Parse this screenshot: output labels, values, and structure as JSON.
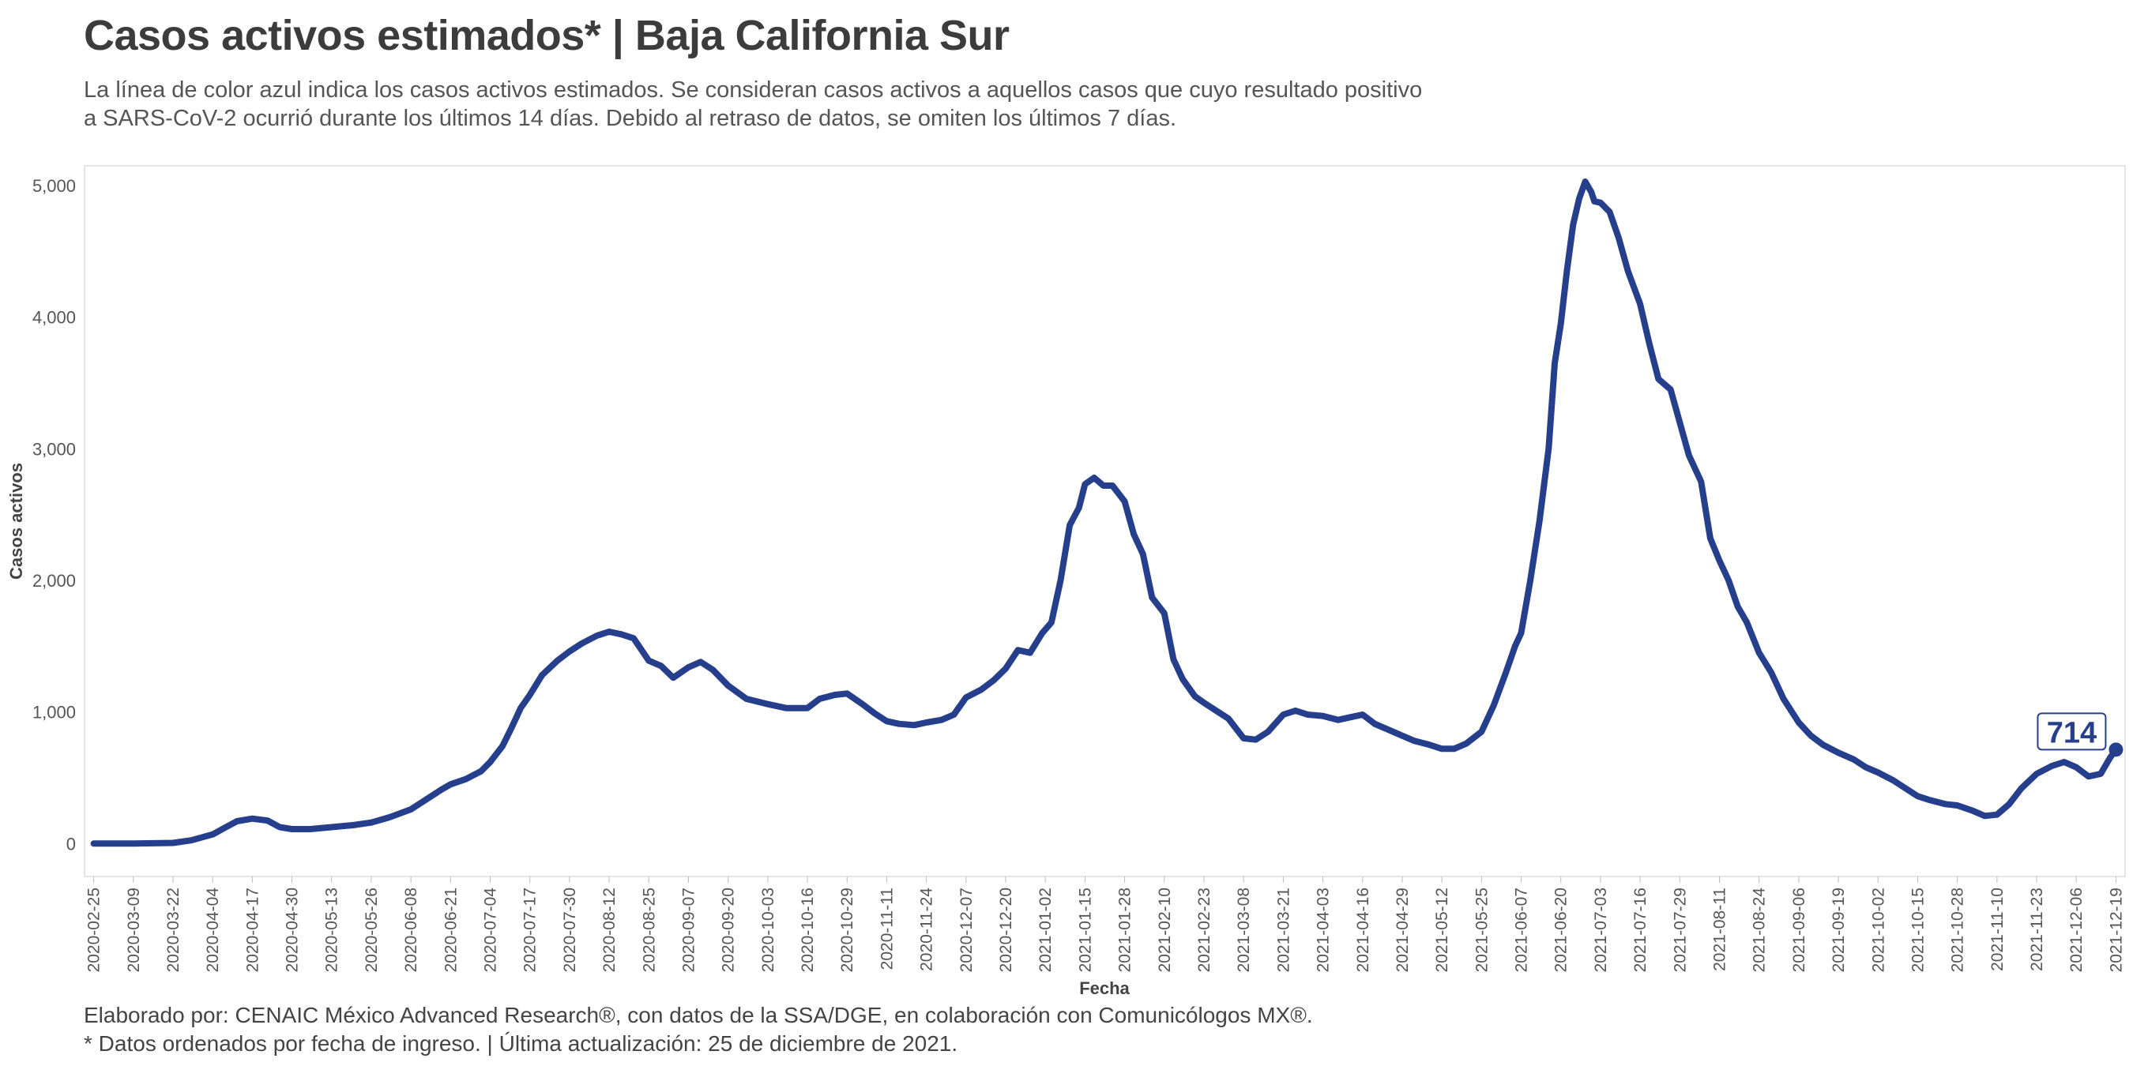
{
  "header": {
    "title": "Casos activos estimados* | Baja California Sur",
    "subtitle_line1": "La línea de color azul indica los casos activos estimados. Se consideran casos activos a aquellos casos que cuyo resultado positivo",
    "subtitle_line2": "a SARS-CoV-2 ocurrió durante los últimos 14 días. Debido al retraso de datos, se omiten los últimos 7 días."
  },
  "footer": {
    "line1": "Elaborado por: CENAIC México Advanced Research®, con datos de la SSA/DGE, en colaboración con Comunicólogos MX®.",
    "line2": "* Datos ordenados por fecha de ingreso. | Última actualización: 25 de diciembre de 2021."
  },
  "colors": {
    "line": "#263f8c",
    "axis_text": "#555555",
    "frame": "#e6e6e6"
  },
  "chart_data": {
    "type": "line",
    "xlabel": "Fecha",
    "ylabel": "Casos activos",
    "ylim": [
      -250,
      5150
    ],
    "xlim": [
      "2020-02-22",
      "2021-12-22"
    ],
    "yticks": [
      0,
      1000,
      2000,
      3000,
      4000,
      5000
    ],
    "ytick_labels": [
      "0",
      "1,000",
      "2,000",
      "3,000",
      "4,000",
      "5,000"
    ],
    "xtick_labels": [
      "2020-02-25",
      "2020-03-09",
      "2020-03-22",
      "2020-04-04",
      "2020-04-17",
      "2020-04-30",
      "2020-05-13",
      "2020-05-26",
      "2020-06-08",
      "2020-06-21",
      "2020-07-04",
      "2020-07-17",
      "2020-07-30",
      "2020-08-12",
      "2020-08-25",
      "2020-09-07",
      "2020-09-20",
      "2020-10-03",
      "2020-10-16",
      "2020-10-29",
      "2020-11-11",
      "2020-11-24",
      "2020-12-07",
      "2020-12-20",
      "2021-01-02",
      "2021-01-15",
      "2021-01-28",
      "2021-02-10",
      "2021-02-23",
      "2021-03-08",
      "2021-03-21",
      "2021-04-03",
      "2021-04-16",
      "2021-04-29",
      "2021-05-12",
      "2021-05-25",
      "2021-06-07",
      "2021-06-20",
      "2021-07-03",
      "2021-07-16",
      "2021-07-29",
      "2021-08-11",
      "2021-08-24",
      "2021-09-06",
      "2021-09-19",
      "2021-10-02",
      "2021-10-15",
      "2021-10-28",
      "2021-11-10",
      "2021-11-23",
      "2021-12-06",
      "2021-12-19"
    ],
    "grid": false,
    "series": [
      {
        "x": [
          "2020-02-25",
          "2020-03-09",
          "2020-03-22",
          "2020-03-28",
          "2020-04-04",
          "2020-04-08",
          "2020-04-12",
          "2020-04-17",
          "2020-04-22",
          "2020-04-26",
          "2020-04-30",
          "2020-05-06",
          "2020-05-13",
          "2020-05-20",
          "2020-05-26",
          "2020-06-01",
          "2020-06-08",
          "2020-06-14",
          "2020-06-18",
          "2020-06-21",
          "2020-06-26",
          "2020-07-01",
          "2020-07-04",
          "2020-07-08",
          "2020-07-11",
          "2020-07-14",
          "2020-07-17",
          "2020-07-21",
          "2020-07-26",
          "2020-07-30",
          "2020-08-03",
          "2020-08-08",
          "2020-08-12",
          "2020-08-16",
          "2020-08-20",
          "2020-08-25",
          "2020-08-29",
          "2020-09-02",
          "2020-09-07",
          "2020-09-11",
          "2020-09-15",
          "2020-09-20",
          "2020-09-26",
          "2020-10-03",
          "2020-10-09",
          "2020-10-16",
          "2020-10-20",
          "2020-10-25",
          "2020-10-29",
          "2020-11-03",
          "2020-11-07",
          "2020-11-11",
          "2020-11-15",
          "2020-11-20",
          "2020-11-24",
          "2020-11-29",
          "2020-12-03",
          "2020-12-07",
          "2020-12-12",
          "2020-12-16",
          "2020-12-20",
          "2020-12-24",
          "2020-12-28",
          "2021-01-01",
          "2021-01-04",
          "2021-01-07",
          "2021-01-10",
          "2021-01-13",
          "2021-01-15",
          "2021-01-18",
          "2021-01-21",
          "2021-01-24",
          "2021-01-28",
          "2021-01-31",
          "2021-02-03",
          "2021-02-06",
          "2021-02-10",
          "2021-02-13",
          "2021-02-16",
          "2021-02-20",
          "2021-02-23",
          "2021-02-27",
          "2021-03-03",
          "2021-03-08",
          "2021-03-12",
          "2021-03-16",
          "2021-03-21",
          "2021-03-25",
          "2021-03-29",
          "2021-04-03",
          "2021-04-08",
          "2021-04-12",
          "2021-04-16",
          "2021-04-20",
          "2021-04-24",
          "2021-04-29",
          "2021-05-03",
          "2021-05-08",
          "2021-05-12",
          "2021-05-16",
          "2021-05-20",
          "2021-05-25",
          "2021-05-29",
          "2021-06-02",
          "2021-06-05",
          "2021-06-07",
          "2021-06-10",
          "2021-06-13",
          "2021-06-16",
          "2021-06-18",
          "2021-06-20",
          "2021-06-22",
          "2021-06-24",
          "2021-06-26",
          "2021-06-28",
          "2021-06-30",
          "2021-07-01",
          "2021-07-03",
          "2021-07-06",
          "2021-07-09",
          "2021-07-12",
          "2021-07-16",
          "2021-07-19",
          "2021-07-22",
          "2021-07-26",
          "2021-07-29",
          "2021-08-01",
          "2021-08-05",
          "2021-08-08",
          "2021-08-11",
          "2021-08-14",
          "2021-08-17",
          "2021-08-20",
          "2021-08-24",
          "2021-08-28",
          "2021-09-01",
          "2021-09-06",
          "2021-09-10",
          "2021-09-14",
          "2021-09-19",
          "2021-09-24",
          "2021-09-28",
          "2021-10-02",
          "2021-10-07",
          "2021-10-11",
          "2021-10-15",
          "2021-10-19",
          "2021-10-24",
          "2021-10-28",
          "2021-11-02",
          "2021-11-06",
          "2021-11-10",
          "2021-11-14",
          "2021-11-18",
          "2021-11-23",
          "2021-11-28",
          "2021-12-02",
          "2021-12-06",
          "2021-12-10",
          "2021-12-14",
          "2021-12-17",
          "2021-12-19"
        ],
        "y": [
          0,
          0,
          5,
          25,
          70,
          120,
          170,
          190,
          175,
          125,
          110,
          110,
          125,
          140,
          160,
          200,
          260,
          350,
          410,
          450,
          490,
          550,
          620,
          740,
          880,
          1030,
          1130,
          1280,
          1390,
          1460,
          1520,
          1580,
          1610,
          1590,
          1560,
          1390,
          1350,
          1260,
          1340,
          1380,
          1320,
          1200,
          1100,
          1060,
          1030,
          1030,
          1100,
          1130,
          1140,
          1060,
          990,
          930,
          910,
          900,
          920,
          940,
          980,
          1110,
          1170,
          1240,
          1330,
          1470,
          1450,
          1600,
          1680,
          2000,
          2420,
          2550,
          2730,
          2780,
          2720,
          2720,
          2600,
          2350,
          2200,
          1870,
          1750,
          1400,
          1250,
          1120,
          1070,
          1010,
          950,
          800,
          790,
          850,
          980,
          1010,
          980,
          970,
          940,
          960,
          980,
          910,
          870,
          820,
          780,
          750,
          720,
          720,
          760,
          850,
          1050,
          1300,
          1500,
          1600,
          2000,
          2450,
          3000,
          3650,
          3950,
          4350,
          4700,
          4900,
          5030,
          4950,
          4880,
          4870,
          4800,
          4600,
          4350,
          4100,
          3800,
          3530,
          3450,
          3200,
          2950,
          2750,
          2320,
          2150,
          2000,
          1800,
          1680,
          1450,
          1300,
          1100,
          920,
          820,
          750,
          690,
          640,
          580,
          540,
          480,
          420,
          360,
          330,
          300,
          290,
          250,
          210,
          220,
          300,
          420,
          530,
          590,
          620,
          580,
          510,
          530,
          650,
          714
        ]
      }
    ],
    "last_value_label": "714"
  }
}
